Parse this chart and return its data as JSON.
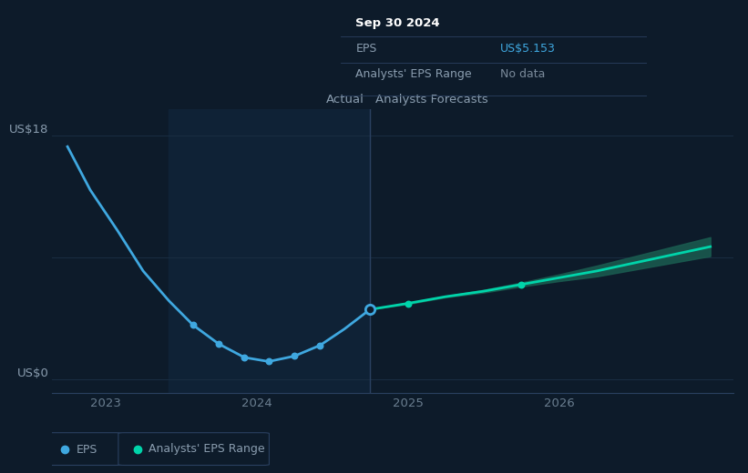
{
  "bg_color": "#0d1b2a",
  "plot_bg_color": "#0d1b2a",
  "highlight_region_color": "#0f2236",
  "ylabel_top": "US$18",
  "ylabel_bottom": "US$0",
  "actual_label": "Actual",
  "forecast_label": "Analysts Forecasts",
  "eps_color": "#3fa8e0",
  "forecast_color": "#00d4aa",
  "forecast_band_color": "#1a5c50",
  "grid_color": "#1a2e42",
  "divider_color": "#2a4060",
  "axis_line_color": "#2a4060",
  "tooltip_bg": "#080e17",
  "tooltip_border": "#2a4060",
  "tooltip_title": "Sep 30 2024",
  "tooltip_eps_label": "EPS",
  "tooltip_eps_value": "US$5.153",
  "tooltip_range_label": "Analysts' EPS Range",
  "tooltip_range_value": "No data",
  "eps_value_color": "#3fa8e0",
  "nodata_color": "#7a8a9a",
  "tick_color": "#6a7e90",
  "label_color": "#8a9daf",
  "legend_border_color": "#2a4060",
  "legend_eps_label": "EPS",
  "legend_range_label": "Analysts' EPS Range",
  "eps_x": [
    2022.75,
    2022.9,
    2023.08,
    2023.25,
    2023.42,
    2023.58,
    2023.75,
    2023.92,
    2024.08,
    2024.25,
    2024.42,
    2024.58,
    2024.75
  ],
  "eps_y": [
    17.2,
    14.0,
    11.0,
    8.0,
    5.8,
    4.0,
    2.6,
    1.6,
    1.3,
    1.7,
    2.5,
    3.7,
    5.153
  ],
  "forecast_x": [
    2024.75,
    2025.0,
    2025.25,
    2025.5,
    2025.75,
    2026.0,
    2026.25,
    2026.5,
    2026.75,
    2027.0
  ],
  "forecast_y": [
    5.153,
    5.6,
    6.1,
    6.5,
    7.0,
    7.5,
    8.0,
    8.6,
    9.2,
    9.8
  ],
  "forecast_upper": [
    5.153,
    5.65,
    6.15,
    6.6,
    7.15,
    7.75,
    8.4,
    9.1,
    9.8,
    10.5
  ],
  "forecast_lower": [
    5.153,
    5.55,
    6.05,
    6.4,
    6.85,
    7.25,
    7.6,
    8.1,
    8.6,
    9.1
  ],
  "xmin": 2022.65,
  "xmax": 2027.15,
  "ymin": -1.0,
  "ymax": 20.0,
  "highlight_xstart": 2023.42,
  "highlight_xend": 2024.75,
  "divider_x": 2024.75,
  "dot_eps_indices": [
    5,
    6,
    7,
    8,
    9,
    10
  ],
  "dot_forecast_indices": [
    1,
    4
  ],
  "transition_dot_x": 2024.75,
  "transition_dot_y": 5.153
}
